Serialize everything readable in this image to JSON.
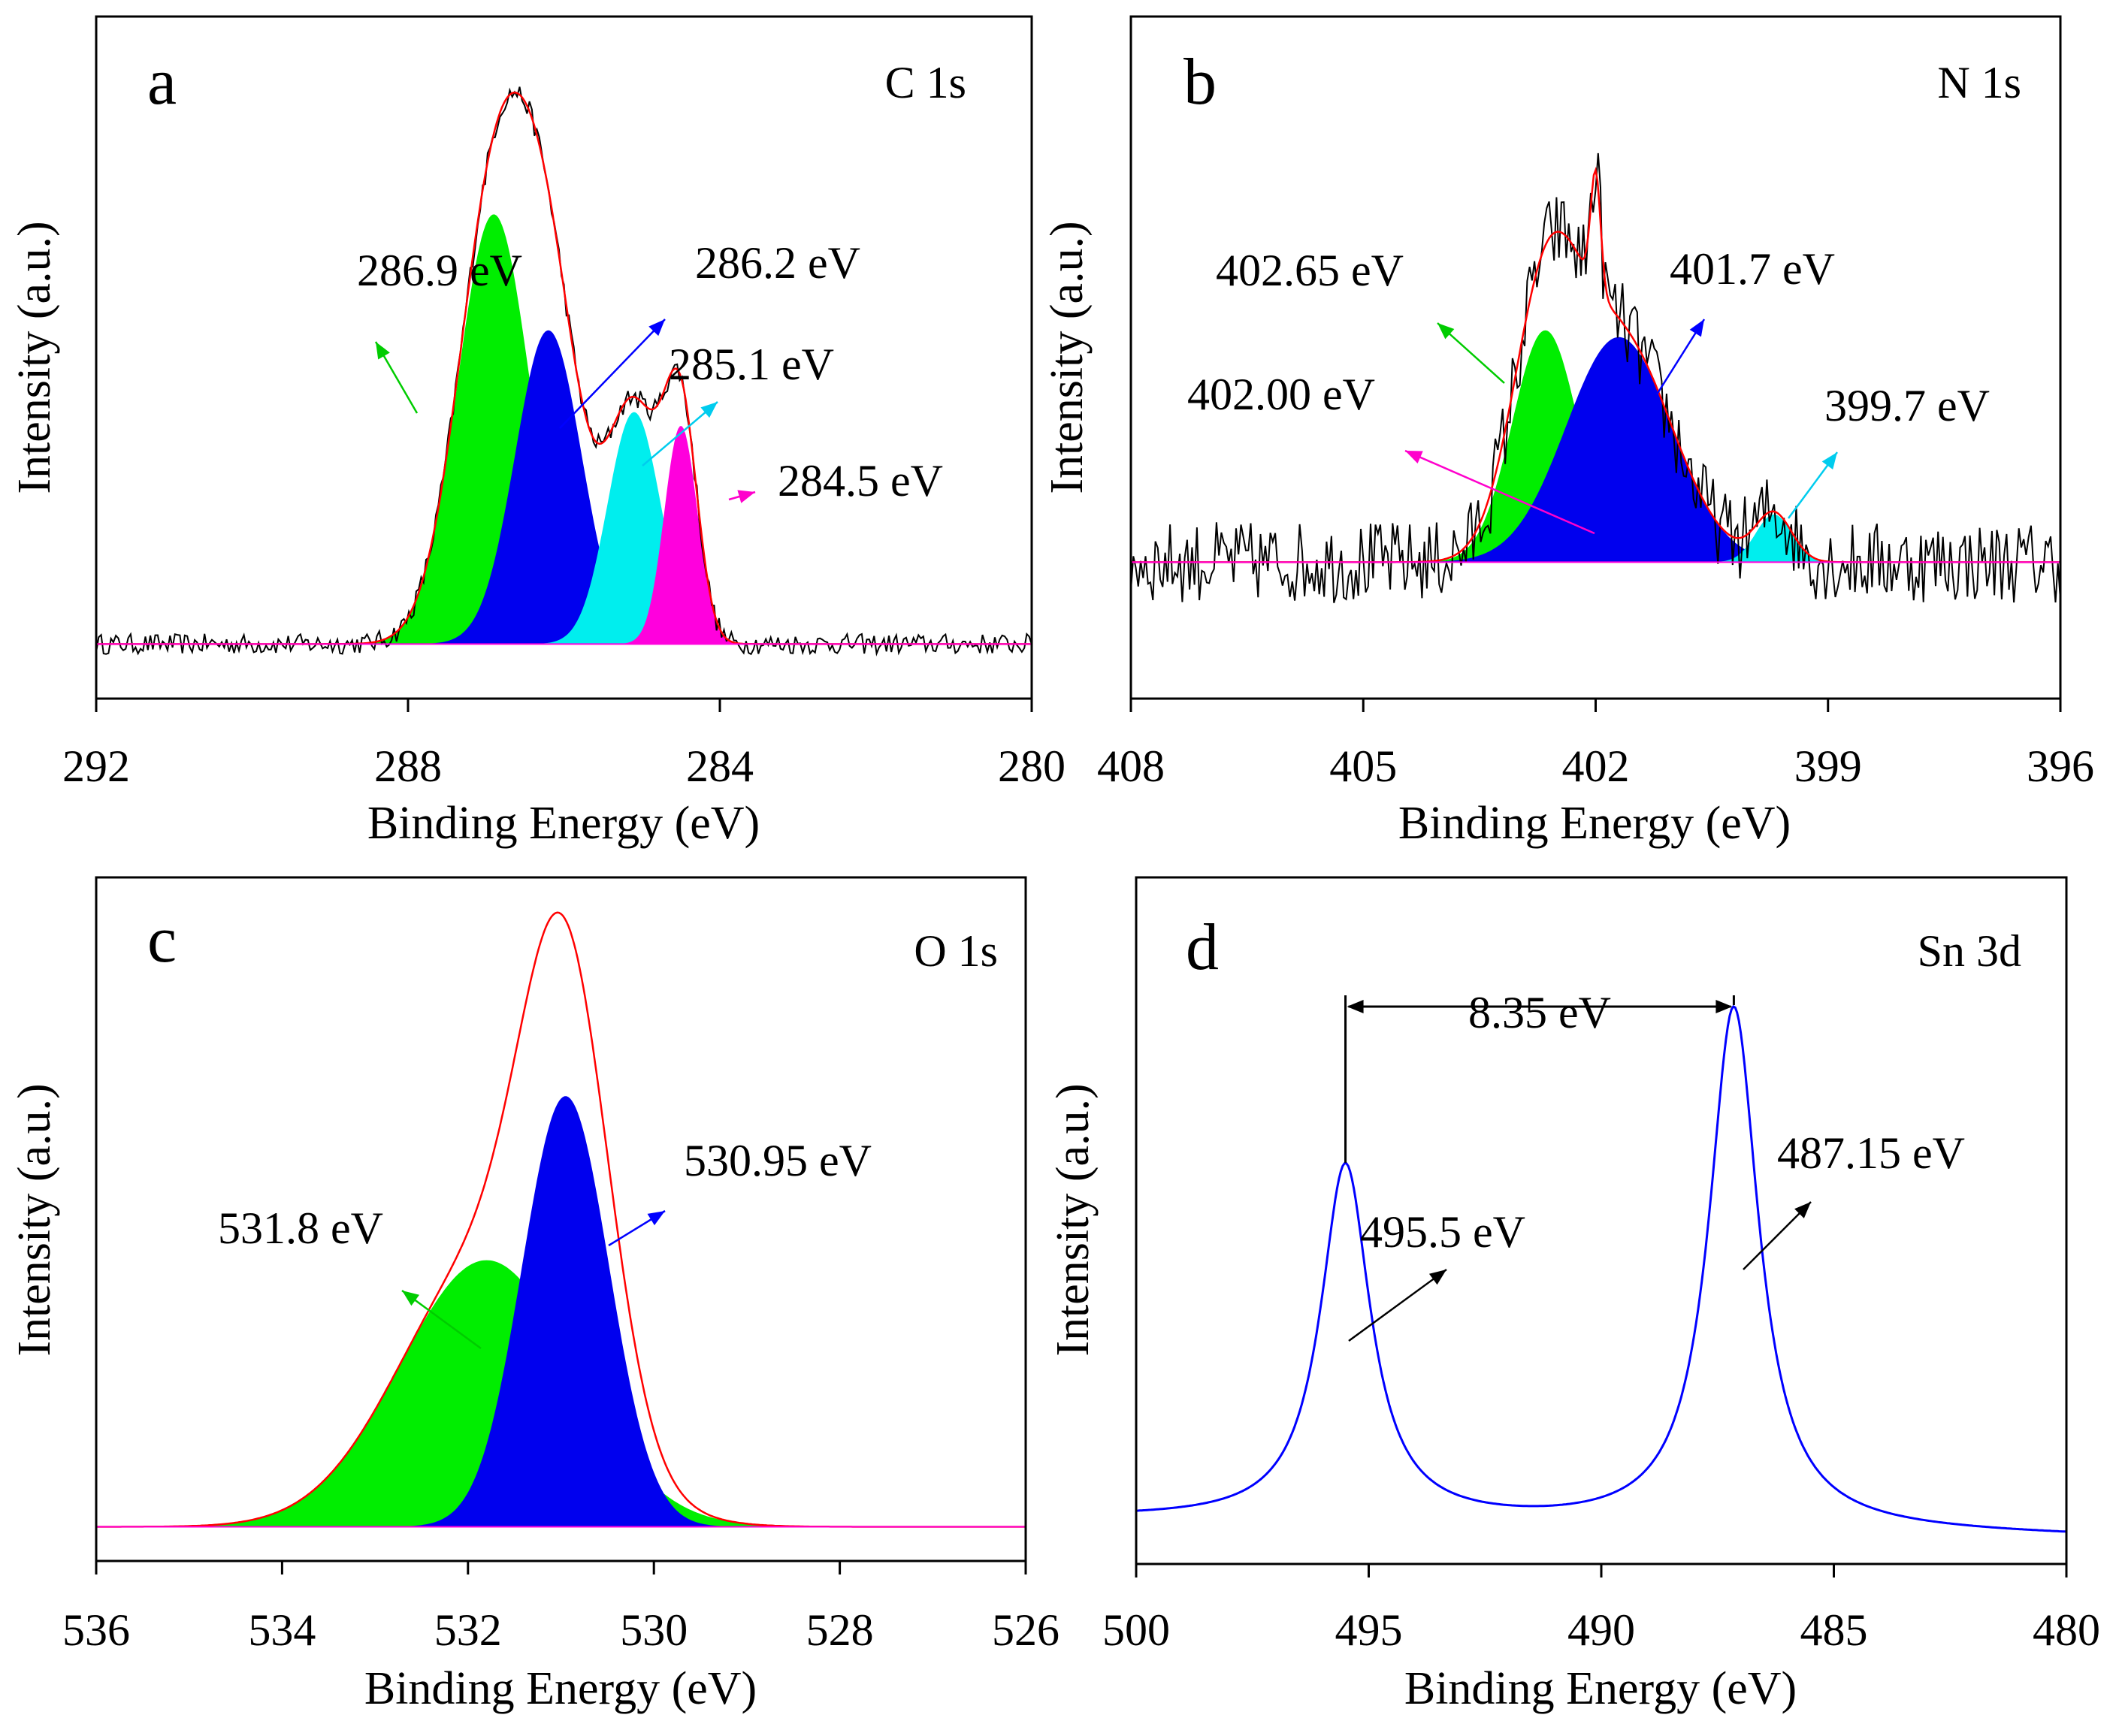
{
  "figure": "XPS spectra",
  "chart_data": [
    {
      "panel": "a",
      "type": "line",
      "title": "C 1s",
      "xlabel": "Binding Energy (eV)",
      "ylabel": "Intensity (a.u.)",
      "xlim": [
        292,
        280
      ],
      "ylim": [
        0,
        1.0
      ],
      "xticks": [
        292,
        288,
        284,
        280
      ],
      "tick_labels": [
        "292",
        "288",
        "284",
        "280"
      ],
      "baseline": 0.08,
      "noise": 0.015,
      "envelope_color": "#ff0000",
      "raw_color": "#000000",
      "components": [
        {
          "center": 286.9,
          "fwhm": 1.1,
          "height": 0.63,
          "color": "#00ee00",
          "label": "286.9 eV",
          "arrow_color": "#00cc00"
        },
        {
          "center": 286.2,
          "fwhm": 1.0,
          "height": 0.46,
          "color": "#0000ee",
          "label": "286.2 eV",
          "arrow_color": "#0000ff"
        },
        {
          "center": 285.1,
          "fwhm": 0.8,
          "height": 0.34,
          "color": "#00eeee",
          "label": "285.1 eV",
          "arrow_color": "#00ccee"
        },
        {
          "center": 284.5,
          "fwhm": 0.5,
          "height": 0.32,
          "color": "#ff00dd",
          "label": "284.5 eV",
          "arrow_color": "#ff00cc"
        }
      ]
    },
    {
      "panel": "b",
      "type": "line",
      "title": "N 1s",
      "xlabel": "Binding Energy (eV)",
      "ylabel": "Intensity (a.u.)",
      "xlim": [
        408,
        396
      ],
      "ylim": [
        0,
        1.0
      ],
      "xticks": [
        408,
        405,
        402,
        399,
        396
      ],
      "tick_labels": [
        "408",
        "405",
        "402",
        "399",
        "396"
      ],
      "baseline": 0.2,
      "noise": 0.06,
      "envelope_color": "#ff0000",
      "raw_color": "#000000",
      "components": [
        {
          "center": 402.65,
          "fwhm": 1.0,
          "height": 0.34,
          "color": "#00ee00",
          "label": "402.65 eV",
          "arrow_color": "#00cc00"
        },
        {
          "center": 402.0,
          "fwhm": 0.15,
          "height": 0.17,
          "color": "#ff00dd",
          "label": "402.00 eV",
          "arrow_color": "#ff00cc"
        },
        {
          "center": 401.7,
          "fwhm": 1.6,
          "height": 0.33,
          "color": "#0000ee",
          "label": "401.7 eV",
          "arrow_color": "#0000ff"
        },
        {
          "center": 399.7,
          "fwhm": 0.55,
          "height": 0.07,
          "color": "#00eeee",
          "label": "399.7 eV",
          "arrow_color": "#00ccee"
        }
      ]
    },
    {
      "panel": "c",
      "type": "line",
      "title": "O 1s",
      "xlabel": "Binding Energy (eV)",
      "ylabel": "Intensity (a.u.)",
      "xlim": [
        536,
        526
      ],
      "ylim": [
        0,
        1.0
      ],
      "xticks": [
        536,
        534,
        532,
        530,
        528,
        526
      ],
      "tick_labels": [
        "536",
        "534",
        "532",
        "530",
        "528",
        "526"
      ],
      "baseline": 0.05,
      "noise": 0.0,
      "envelope_color": "#ff0000",
      "raw_color": "#000000",
      "components": [
        {
          "center": 531.8,
          "fwhm": 2.2,
          "height": 0.39,
          "color": "#00ee00",
          "label": "531.8 eV",
          "arrow_color": "#00cc00"
        },
        {
          "center": 530.95,
          "fwhm": 1.1,
          "height": 0.63,
          "color": "#0000ee",
          "label": "530.95 eV",
          "arrow_color": "#0000ff"
        }
      ]
    },
    {
      "panel": "d",
      "type": "line",
      "title": "Sn 3d",
      "xlabel": "Binding Energy (eV)",
      "ylabel": "Intensity (a.u.)",
      "xlim": [
        500,
        480
      ],
      "ylim": [
        0,
        1.0
      ],
      "xticks": [
        500,
        495,
        490,
        485,
        480
      ],
      "tick_labels": [
        "500",
        "495",
        "490",
        "485",
        "480"
      ],
      "line_color": "#0000ff",
      "peaks": [
        {
          "center": 495.5,
          "fwhm": 1.3,
          "height": 0.52,
          "label": "495.5 eV"
        },
        {
          "center": 487.15,
          "fwhm": 1.3,
          "height": 0.76,
          "label": "487.15 eV"
        }
      ],
      "splitting_label": "8.35 eV"
    }
  ]
}
